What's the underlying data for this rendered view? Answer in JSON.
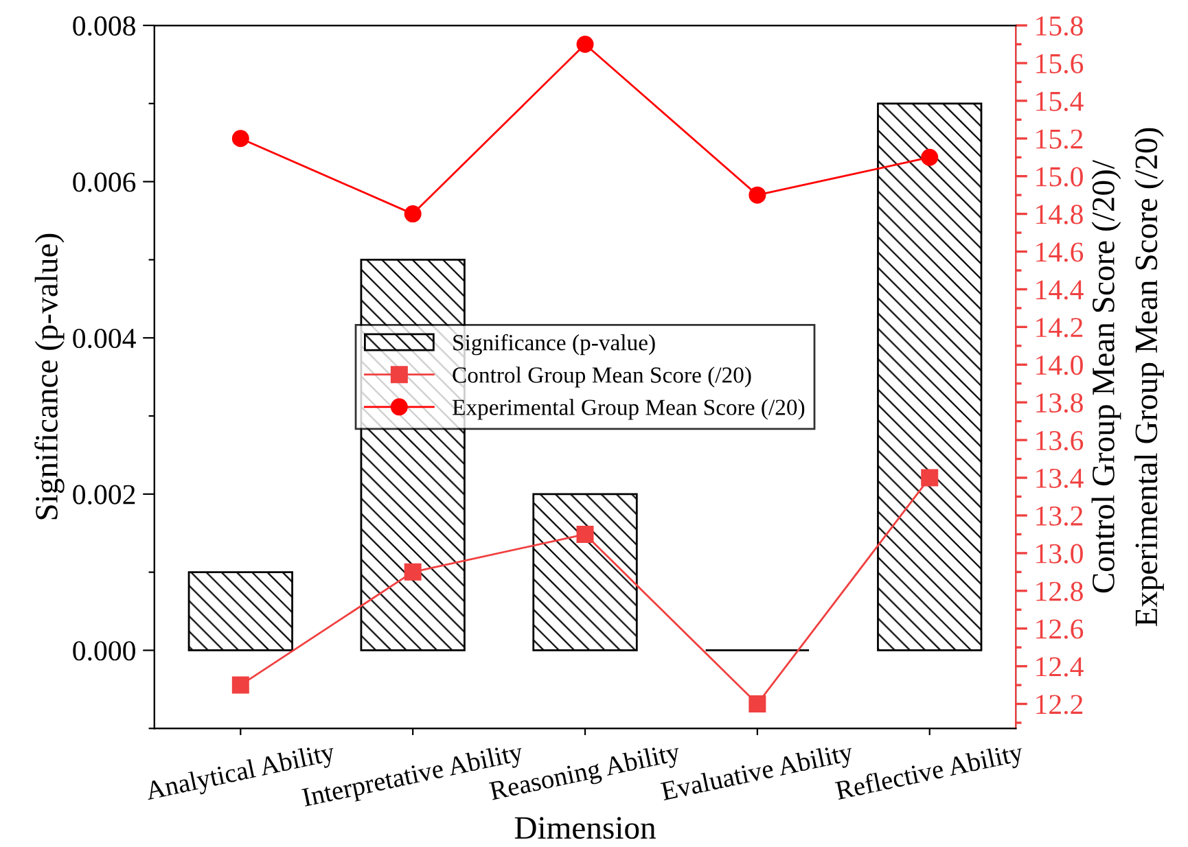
{
  "chart_data": {
    "type": "bar",
    "xlabel": "Dimension",
    "ylabel": "Significance (p-value)",
    "y2label": "Control Group Mean Score (/20)/\nExperimental Group Mean Score (/20)",
    "categories": [
      "Analytical Ability",
      "Interpretative Ability",
      "Reasoning Ability",
      "Evaluative Ability",
      "Reflective Ability"
    ],
    "series": [
      {
        "name": "Significance (p-value)",
        "color": "#000000",
        "values": [
          0.001,
          0.005,
          0.002,
          0.0,
          0.007
        ]
      },
      {
        "name": "Control Group Mean Score (/20)",
        "type": "line",
        "axis": "y2",
        "marker": "square",
        "color": "#f04040",
        "values": [
          12.3,
          12.9,
          13.1,
          12.2,
          13.4
        ]
      },
      {
        "name": "Experimental Group Mean Score (/20)",
        "type": "line",
        "axis": "y2",
        "marker": "circle",
        "color": "#ff0000",
        "values": [
          15.2,
          14.8,
          15.7,
          14.9,
          15.1
        ]
      }
    ],
    "ylim": [
      -0.001,
      0.008
    ],
    "yticks": [
      {
        "value": -0.001,
        "label": null
      },
      {
        "value": 0,
        "label": "0.000"
      },
      {
        "value": 0.001,
        "label": null
      },
      {
        "value": 0.002,
        "label": "0.002"
      },
      {
        "value": 0.003,
        "label": null
      },
      {
        "value": 0.004,
        "label": "0.004"
      },
      {
        "value": 0.005,
        "label": null
      },
      {
        "value": 0.006,
        "label": "0.006"
      },
      {
        "value": 0.007,
        "label": null
      },
      {
        "value": 0.008,
        "label": "0.008"
      }
    ],
    "y2lim": [
      12.07,
      15.8
    ],
    "y2ticks": [
      {
        "value": 12.1,
        "label": null
      },
      12.2,
      {
        "value": 12.3,
        "label": null
      },
      12.4,
      {
        "value": 12.5,
        "label": null
      },
      12.6,
      {
        "value": 12.7,
        "label": null
      },
      12.8,
      {
        "value": 12.9,
        "label": null
      },
      {
        "value": 13,
        "label": "13.0"
      },
      {
        "value": 13.1,
        "label": null
      },
      13.2,
      {
        "value": 13.3,
        "label": null
      },
      13.4,
      {
        "value": 13.5,
        "label": null
      },
      13.6,
      {
        "value": 13.7,
        "label": null
      },
      13.8,
      {
        "value": 13.9,
        "label": null
      },
      {
        "value": 14,
        "label": "14.0"
      },
      {
        "value": 14.1,
        "label": null
      },
      14.2,
      {
        "value": 14.3,
        "label": null
      },
      14.4,
      {
        "value": 14.5,
        "label": null
      },
      14.6,
      {
        "value": 14.7,
        "label": null
      },
      14.8,
      {
        "value": 14.9,
        "label": null
      },
      {
        "value": 15,
        "label": "15.0"
      },
      {
        "value": 15.1,
        "label": null
      },
      15.2,
      {
        "value": 15.3,
        "label": null
      },
      15.4,
      {
        "value": 15.5,
        "label": null
      },
      15.6,
      {
        "value": 15.7,
        "label": null
      },
      15.8
    ],
    "legend": "center",
    "grid": false
  }
}
